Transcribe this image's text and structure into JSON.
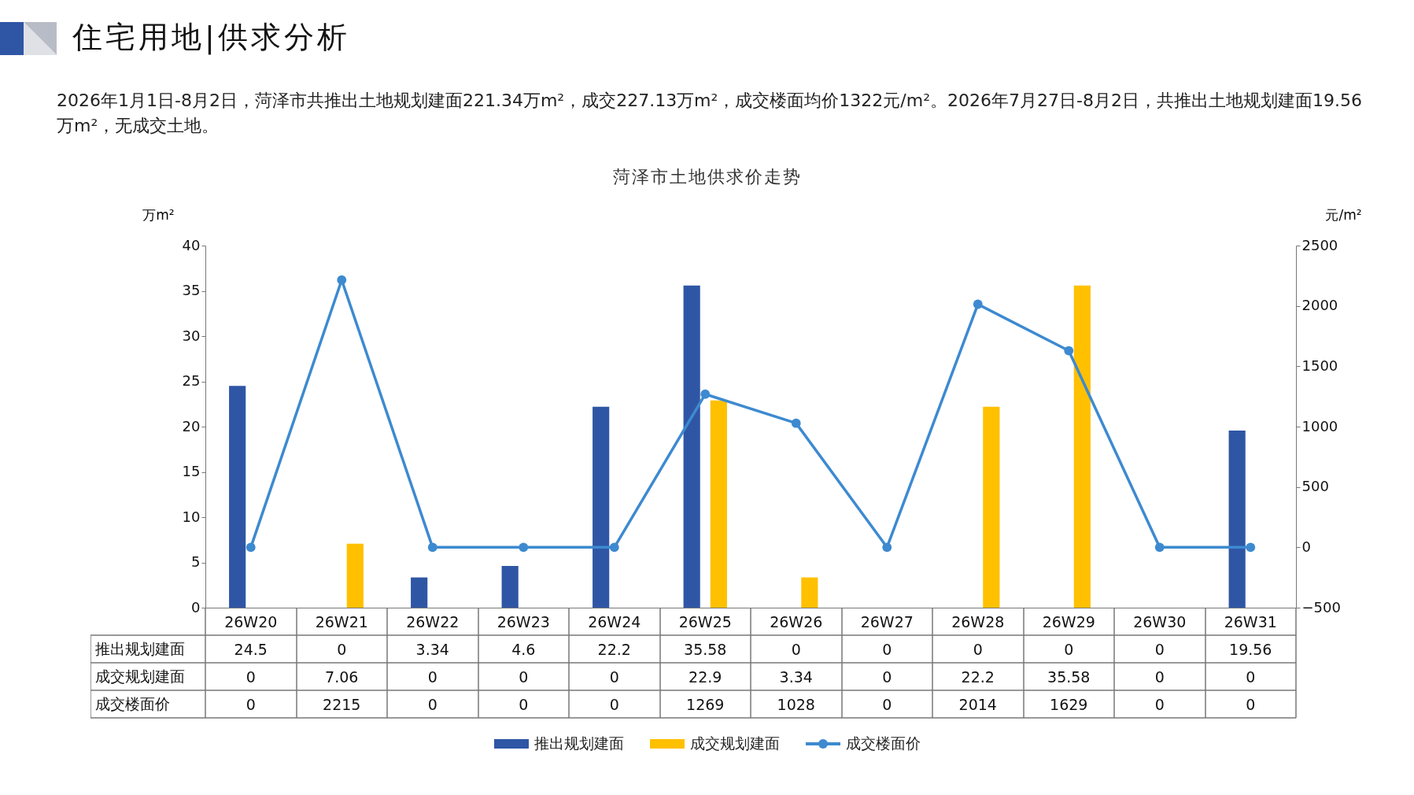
{
  "chart_data": {
    "type": "bar",
    "title": "住宅用地|供求分析",
    "subtitle": "2026年1月1日-8月2日，菏泽市共推出土地规划建面221.34万m²，成交227.13万m²，成交楼面均价1322元/m²。2026年7月27日-8月2日，共推出土地规划建面19.56万m²，无成交土地。",
    "annotations": [
      "菏泽市土地供求价走势"
    ],
    "ylabel": "万m²",
    "y2label": "元/m²",
    "categories": [
      "26W20",
      "26W21",
      "26W22",
      "26W23",
      "26W24",
      "26W25",
      "26W26",
      "26W27",
      "26W28",
      "26W29",
      "26W30",
      "26W31"
    ],
    "series": [
      {
        "name": "推出规划建面",
        "color": "#2f56a5",
        "values": [
          24.5,
          0,
          3.34,
          4.6,
          22.2,
          35.58,
          0,
          0,
          0,
          0,
          0,
          19.56
        ]
      },
      {
        "name": "成交规划建面",
        "color": "#ffc000",
        "values": [
          0,
          7.06,
          0,
          0,
          0,
          22.9,
          3.34,
          0,
          22.2,
          35.58,
          0,
          0
        ]
      },
      {
        "name": "成交楼面价",
        "type": "line",
        "axis": "y2",
        "color": "#3d8ad0",
        "values": [
          0,
          2215,
          0,
          0,
          0,
          1269,
          1028,
          0,
          2014,
          1629,
          0,
          0
        ]
      }
    ],
    "ylim": [
      0,
      40
    ],
    "yticks": [
      0,
      5,
      10,
      15,
      20,
      25,
      30,
      35,
      40
    ],
    "y2lim": [
      -500,
      2500
    ],
    "y2ticks": [
      -500,
      0,
      500,
      1000,
      1500,
      2000,
      2500
    ],
    "marker": "circle",
    "legend": "bottom",
    "data_labels": true
  }
}
